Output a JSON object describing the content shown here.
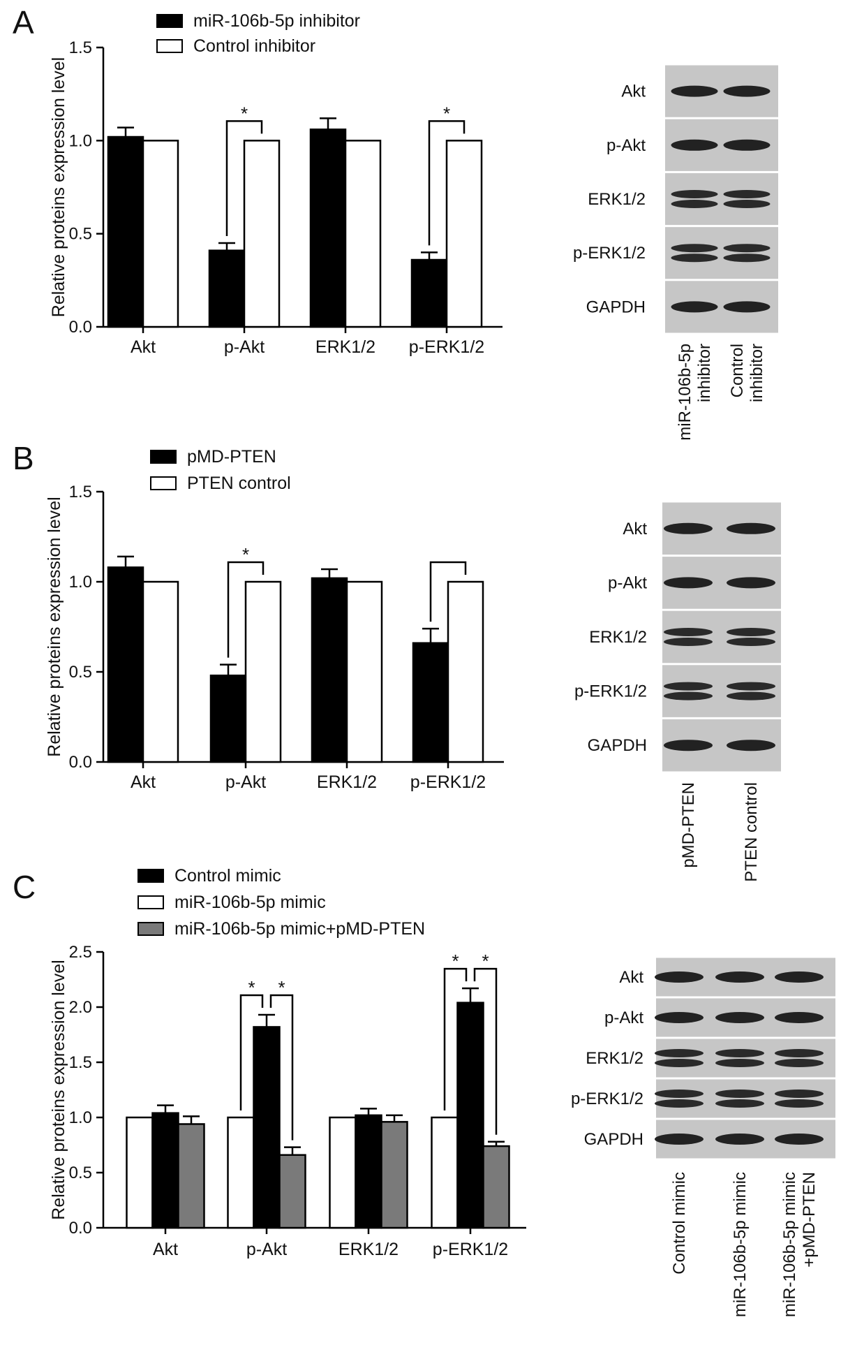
{
  "panels": [
    {
      "letter": "A",
      "chart_data": {
        "type": "bar",
        "ylabel": "Relative proteins expression level",
        "ylim": [
          0,
          1.5
        ],
        "yticks": [
          "0.0",
          "0.5",
          "1.0",
          "1.5"
        ],
        "categories": [
          "Akt",
          "p-Akt",
          "ERK1/2",
          "p-ERK1/2"
        ],
        "series": [
          {
            "name": "miR-106b-5p inhibitor",
            "values": [
              1.02,
              0.41,
              1.06,
              0.36
            ],
            "errors": [
              0.05,
              0.04,
              0.06,
              0.04
            ],
            "color": "#000000"
          },
          {
            "name": "Control inhibitor",
            "values": [
              1.0,
              1.0,
              1.0,
              1.0
            ],
            "errors": [
              0,
              0,
              0,
              0
            ],
            "color": "#ffffff"
          }
        ],
        "significance": [
          {
            "category": 1,
            "between": [
              0,
              1
            ],
            "label": "*"
          },
          {
            "category": 3,
            "between": [
              0,
              1
            ],
            "label": "*"
          }
        ]
      },
      "blot": {
        "rows": [
          "Akt",
          "p-Akt",
          "ERK1/2",
          "p-ERK1/2",
          "GAPDH"
        ],
        "lanes": [
          "miR-106b-5p inhibitor",
          "Control inhibitor"
        ]
      }
    },
    {
      "letter": "B",
      "chart_data": {
        "type": "bar",
        "ylabel": "Relative proteins expression level",
        "ylim": [
          0,
          1.5
        ],
        "yticks": [
          "0.0",
          "0.5",
          "1.0",
          "1.5"
        ],
        "categories": [
          "Akt",
          "p-Akt",
          "ERK1/2",
          "p-ERK1/2"
        ],
        "series": [
          {
            "name": "pMD-PTEN",
            "values": [
              1.08,
              0.48,
              1.02,
              0.66
            ],
            "errors": [
              0.06,
              0.06,
              0.05,
              0.08
            ],
            "color": "#000000"
          },
          {
            "name": "PTEN control",
            "values": [
              1.0,
              1.0,
              1.0,
              1.0
            ],
            "errors": [
              0,
              0,
              0,
              0
            ],
            "color": "#ffffff"
          }
        ],
        "significance": [
          {
            "category": 1,
            "between": [
              0,
              1
            ],
            "label": "*"
          },
          {
            "category": 3,
            "between": [
              0,
              1
            ],
            "label": ""
          }
        ]
      },
      "blot": {
        "rows": [
          "Akt",
          "p-Akt",
          "ERK1/2",
          "p-ERK1/2",
          "GAPDH"
        ],
        "lanes": [
          "pMD-PTEN",
          "PTEN control"
        ]
      }
    },
    {
      "letter": "C",
      "chart_data": {
        "type": "bar",
        "ylabel": "Relative proteins expression level",
        "ylim": [
          0,
          2.5
        ],
        "yticks": [
          "0.0",
          "0.5",
          "1.0",
          "1.5",
          "2.0",
          "2.5"
        ],
        "categories": [
          "Akt",
          "p-Akt",
          "ERK1/2",
          "p-ERK1/2"
        ],
        "legend_order": [
          1,
          0,
          2
        ],
        "series": [
          {
            "name": "miR-106b-5p mimic",
            "values": [
              1.0,
              1.0,
              1.0,
              1.0
            ],
            "errors": [
              0,
              0,
              0,
              0
            ],
            "color": "#ffffff"
          },
          {
            "name": "Control mimic",
            "values": [
              1.04,
              1.82,
              1.02,
              2.04
            ],
            "errors": [
              0.07,
              0.11,
              0.06,
              0.13
            ],
            "color": "#000000"
          },
          {
            "name": "miR-106b-5p mimic+pMD-PTEN",
            "values": [
              0.94,
              0.66,
              0.96,
              0.74
            ],
            "errors": [
              0.07,
              0.07,
              0.06,
              0.04
            ],
            "color": "#7a7a7a"
          }
        ],
        "significance": [
          {
            "category": 1,
            "between": [
              0,
              1
            ],
            "label": "*"
          },
          {
            "category": 1,
            "between": [
              1,
              2
            ],
            "label": "*"
          },
          {
            "category": 3,
            "between": [
              0,
              1
            ],
            "label": "*"
          },
          {
            "category": 3,
            "between": [
              1,
              2
            ],
            "label": "*"
          }
        ]
      },
      "blot": {
        "rows": [
          "Akt",
          "p-Akt",
          "ERK1/2",
          "p-ERK1/2",
          "GAPDH"
        ],
        "lanes": [
          "Control mimic",
          "miR-106b-5p mimic",
          "miR-106b-5p mimic +pMD-PTEN"
        ]
      }
    }
  ]
}
